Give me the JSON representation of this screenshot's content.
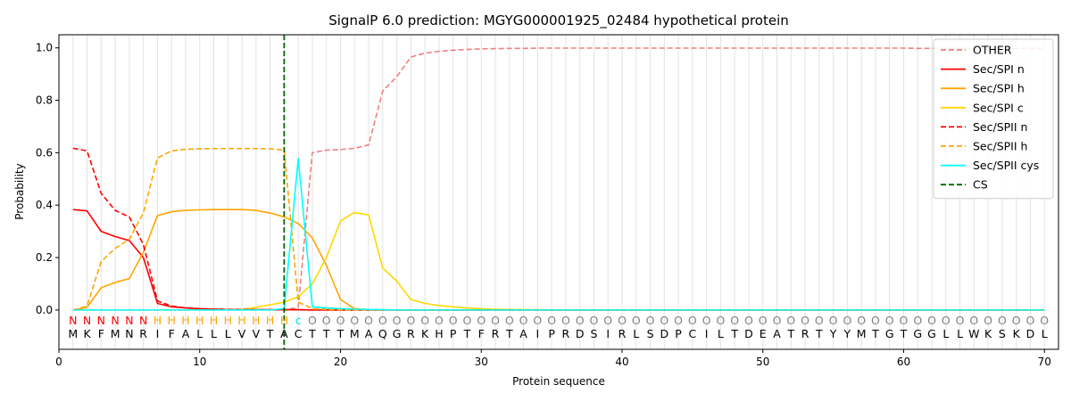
{
  "chart_data": {
    "type": "line",
    "title": "SignalP 6.0 prediction: MGYG000001925_02484 hypothetical protein",
    "xlabel": "Protein sequence",
    "ylabel": "Probability",
    "xlim": [
      0,
      71
    ],
    "ylim": [
      -0.15,
      1.05
    ],
    "xticks": [
      0,
      10,
      20,
      30,
      40,
      50,
      60,
      70
    ],
    "yticks": [
      0.0,
      0.2,
      0.4,
      0.6,
      0.8,
      1.0
    ],
    "ytick_labels": [
      "0.0",
      "0.2",
      "0.4",
      "0.6",
      "0.8",
      "1.0"
    ],
    "grid": "vertical lines at each residue",
    "legend_position": "top-right",
    "sequence": [
      "M",
      "K",
      "F",
      "M",
      "N",
      "R",
      "I",
      "F",
      "A",
      "L",
      "L",
      "L",
      "V",
      "V",
      "T",
      "A",
      "C",
      "T",
      "T",
      "T",
      "M",
      "A",
      "Q",
      "G",
      "R",
      "K",
      "H",
      "P",
      "T",
      "F",
      "R",
      "T",
      "A",
      "I",
      "P",
      "R",
      "D",
      "S",
      "I",
      "R",
      "L",
      "S",
      "D",
      "P",
      "C",
      "I",
      "L",
      "T",
      "D",
      "E",
      "A",
      "T",
      "R",
      "T",
      "Y",
      "Y",
      "M",
      "T",
      "G",
      "T",
      "G",
      "G",
      "L",
      "L",
      "W",
      "K",
      "S",
      "K",
      "D",
      "L"
    ],
    "labels": [
      "N",
      "N",
      "N",
      "N",
      "N",
      "N",
      "H",
      "H",
      "H",
      "H",
      "H",
      "H",
      "H",
      "H",
      "H",
      "H",
      "C",
      "O",
      "O",
      "O",
      "O",
      "O",
      "O",
      "O",
      "O",
      "O",
      "O",
      "O",
      "O",
      "O",
      "O",
      "O",
      "O",
      "O",
      "O",
      "O",
      "O",
      "O",
      "O",
      "O",
      "O",
      "O",
      "O",
      "O",
      "O",
      "O",
      "O",
      "O",
      "O",
      "O",
      "O",
      "O",
      "O",
      "O",
      "O",
      "O",
      "O",
      "O",
      "O",
      "O",
      "O",
      "O",
      "O",
      "O",
      "O",
      "O",
      "O",
      "O",
      "O",
      "O"
    ],
    "label_colors": {
      "N": "#ff0000",
      "H": "#ffa500",
      "C": "#00e5e5",
      "O": "#808080"
    },
    "cleavage_site": 16,
    "series": [
      {
        "name": "OTHER",
        "color": "#f08080",
        "dash": true,
        "values": [
          0,
          0,
          0,
          0,
          0,
          0,
          0,
          0,
          0,
          0,
          0,
          0,
          0,
          0,
          0,
          0,
          0.01,
          0.6,
          0.61,
          0.612,
          0.617,
          0.63,
          0.835,
          0.89,
          0.965,
          0.98,
          0.987,
          0.991,
          0.994,
          0.996,
          0.997,
          0.998,
          0.998,
          0.999,
          0.999,
          0.999,
          0.999,
          0.999,
          0.999,
          0.999,
          0.999,
          0.999,
          0.999,
          0.999,
          0.999,
          0.999,
          0.999,
          0.999,
          0.999,
          0.999,
          0.999,
          0.999,
          0.999,
          0.999,
          0.999,
          0.999,
          0.999,
          0.999,
          0.999,
          0.999,
          0.998,
          0.998,
          0.998,
          0.998,
          0.998,
          0.998,
          0.998,
          0.998,
          0.998,
          0.998
        ]
      },
      {
        "name": "Sec/SPI n",
        "color": "#ff0000",
        "dash": false,
        "values": [
          0.383,
          0.378,
          0.3,
          0.28,
          0.265,
          0.2,
          0.025,
          0.012,
          0.008,
          0.005,
          0.003,
          0.002,
          0.002,
          0.001,
          0.001,
          0.001,
          0.001,
          0,
          0,
          0,
          0,
          0,
          0,
          0,
          0,
          0,
          0,
          0,
          0,
          0,
          0,
          0,
          0,
          0,
          0,
          0,
          0,
          0,
          0,
          0,
          0,
          0,
          0,
          0,
          0,
          0,
          0,
          0,
          0,
          0,
          0,
          0,
          0,
          0,
          0,
          0,
          0,
          0,
          0,
          0,
          0,
          0,
          0,
          0,
          0,
          0,
          0,
          0,
          0,
          0
        ]
      },
      {
        "name": "Sec/SPI h",
        "color": "#ffa500",
        "dash": false,
        "values": [
          0,
          0.01,
          0.085,
          0.105,
          0.12,
          0.22,
          0.36,
          0.375,
          0.38,
          0.382,
          0.383,
          0.383,
          0.383,
          0.38,
          0.37,
          0.355,
          0.33,
          0.275,
          0.17,
          0.04,
          0.005,
          0.002,
          0.001,
          0,
          0,
          0,
          0,
          0,
          0,
          0,
          0,
          0,
          0,
          0,
          0,
          0,
          0,
          0,
          0,
          0,
          0,
          0,
          0,
          0,
          0,
          0,
          0,
          0,
          0,
          0,
          0,
          0,
          0,
          0,
          0,
          0,
          0,
          0,
          0,
          0,
          0,
          0,
          0,
          0,
          0,
          0,
          0,
          0,
          0,
          0
        ]
      },
      {
        "name": "Sec/SPI c",
        "color": "#ffd700",
        "dash": false,
        "values": [
          0,
          0,
          0,
          0,
          0,
          0,
          0,
          0,
          0,
          0,
          0,
          0.001,
          0.002,
          0.01,
          0.02,
          0.03,
          0.05,
          0.1,
          0.2,
          0.34,
          0.372,
          0.362,
          0.16,
          0.11,
          0.04,
          0.025,
          0.017,
          0.012,
          0.008,
          0.005,
          0.003,
          0.002,
          0.001,
          0.001,
          0,
          0,
          0,
          0,
          0,
          0,
          0,
          0,
          0,
          0,
          0,
          0,
          0,
          0,
          0,
          0,
          0,
          0,
          0,
          0,
          0,
          0,
          0,
          0,
          0,
          0,
          0,
          0,
          0,
          0,
          0,
          0,
          0,
          0,
          0,
          0
        ]
      },
      {
        "name": "Sec/SPII n",
        "color": "#ff0000",
        "dash": true,
        "values": [
          0.617,
          0.607,
          0.445,
          0.38,
          0.355,
          0.25,
          0.035,
          0.015,
          0.008,
          0.005,
          0.003,
          0.002,
          0.002,
          0.001,
          0.001,
          0.001,
          0.001,
          0,
          0,
          0,
          0,
          0,
          0,
          0,
          0,
          0,
          0,
          0,
          0,
          0,
          0,
          0,
          0,
          0,
          0,
          0,
          0,
          0,
          0,
          0,
          0,
          0,
          0,
          0,
          0,
          0,
          0,
          0,
          0,
          0,
          0,
          0,
          0,
          0,
          0,
          0,
          0,
          0,
          0,
          0,
          0,
          0,
          0,
          0,
          0,
          0,
          0,
          0,
          0,
          0
        ]
      },
      {
        "name": "Sec/SPII h",
        "color": "#ffa500",
        "dash": true,
        "values": [
          0,
          0.015,
          0.185,
          0.235,
          0.27,
          0.37,
          0.58,
          0.607,
          0.613,
          0.615,
          0.616,
          0.616,
          0.616,
          0.616,
          0.615,
          0.61,
          0.03,
          0.005,
          0.002,
          0.001,
          0,
          0,
          0,
          0,
          0,
          0,
          0,
          0,
          0,
          0,
          0,
          0,
          0,
          0,
          0,
          0,
          0,
          0,
          0,
          0,
          0,
          0,
          0,
          0,
          0,
          0,
          0,
          0,
          0,
          0,
          0,
          0,
          0,
          0,
          0,
          0,
          0,
          0,
          0,
          0,
          0,
          0,
          0,
          0,
          0,
          0,
          0,
          0,
          0,
          0
        ]
      },
      {
        "name": "Sec/SPII cys",
        "color": "#00ffff",
        "dash": false,
        "values": [
          0,
          0,
          0,
          0,
          0,
          0,
          0,
          0,
          0,
          0,
          0,
          0,
          0,
          0,
          0,
          0.005,
          0.578,
          0.012,
          0.008,
          0.005,
          0.003,
          0.002,
          0.001,
          0,
          0,
          0,
          0,
          0,
          0,
          0,
          0,
          0,
          0,
          0,
          0,
          0,
          0,
          0,
          0,
          0,
          0,
          0,
          0,
          0,
          0,
          0,
          0,
          0,
          0,
          0,
          0,
          0,
          0,
          0,
          0,
          0,
          0,
          0,
          0,
          0,
          0,
          0,
          0,
          0,
          0,
          0,
          0,
          0,
          0,
          0
        ]
      },
      {
        "name": "CS",
        "color": "#006400",
        "dash": true,
        "vertical_at": 16
      }
    ]
  }
}
